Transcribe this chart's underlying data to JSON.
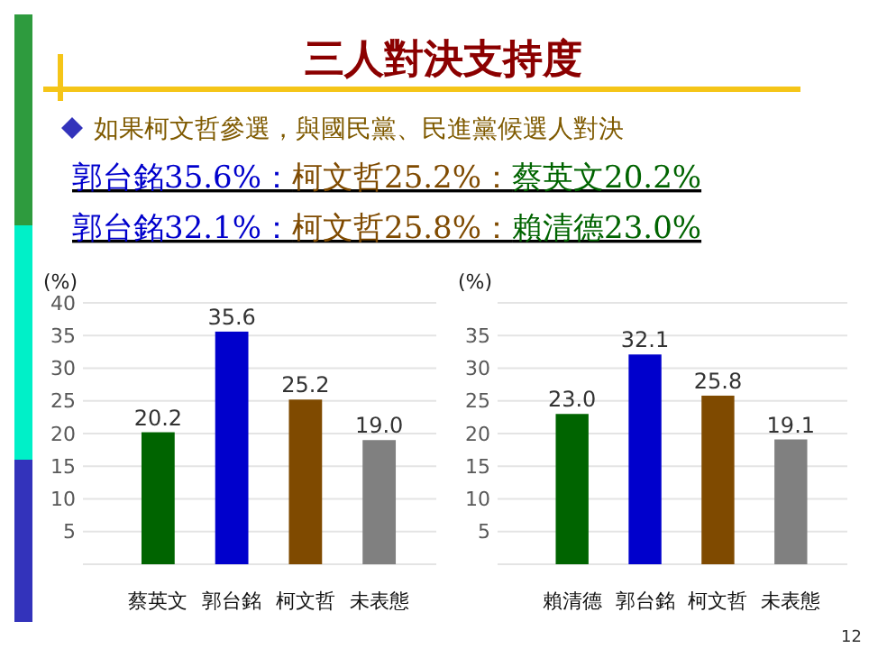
{
  "chart_data": [
    {
      "type": "bar",
      "title": "三人對決支持度",
      "subtitle": "如果柯文哲參選，與國民黨、民進黨候選人對決",
      "annotations": [
        "郭台銘35.6%：柯文哲25.2%：蔡英文20.2%",
        "郭台銘32.1%：柯文哲25.8%：賴清德23.0%"
      ],
      "ylabel": "(%)",
      "categories": [
        "蔡英文",
        "郭台銘",
        "柯文哲",
        "未表態"
      ],
      "values": [
        20.2,
        35.6,
        25.2,
        19.0
      ],
      "value_labels": [
        "20.2",
        "35.6",
        "25.2",
        "19.0"
      ],
      "colors": [
        "#006400",
        "#0000cc",
        "#7f4a00",
        "#808080"
      ],
      "ylim": [
        0,
        40
      ],
      "yticks": [
        5,
        10,
        15,
        20,
        25,
        30,
        35,
        40
      ],
      "grid": "y"
    },
    {
      "type": "bar",
      "annotations": [
        "12"
      ],
      "ylabel": "(%)",
      "categories": [
        "賴清德",
        "郭台銘",
        "柯文哲",
        "未表態"
      ],
      "values": [
        23.0,
        32.1,
        25.8,
        19.1
      ],
      "value_labels": [
        "23.0",
        "32.1",
        "25.8",
        "19.1"
      ],
      "colors": [
        "#006400",
        "#0000cc",
        "#7f4a00",
        "#808080"
      ],
      "ylim": [
        0,
        40
      ],
      "yticks": [
        5,
        10,
        15,
        20,
        25,
        30,
        35
      ],
      "grid": "y"
    }
  ]
}
